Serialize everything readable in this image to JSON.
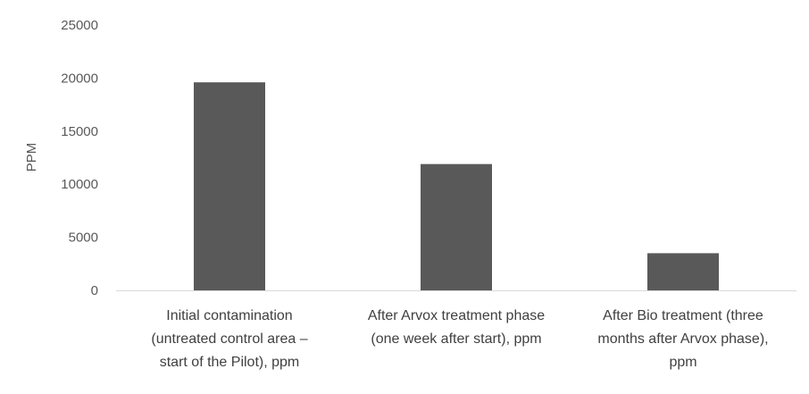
{
  "chart_data": {
    "type": "bar",
    "title": "",
    "xlabel": "",
    "ylabel": "PPM",
    "ylim": [
      0,
      25000
    ],
    "yticks": [
      "0",
      "5000",
      "10000",
      "15000",
      "20000",
      "25000"
    ],
    "grid": false,
    "categories": [
      [
        "Initial contamination",
        "(untreated control area –",
        "start of the Pilot), ppm"
      ],
      [
        "After Arvox treatment phase",
        "(one week after start), ppm"
      ],
      [
        "After Bio treatment (three",
        "months after Arvox phase),",
        "ppm"
      ]
    ],
    "values": [
      19600,
      11900,
      3500
    ],
    "bar_color": "#595959"
  }
}
